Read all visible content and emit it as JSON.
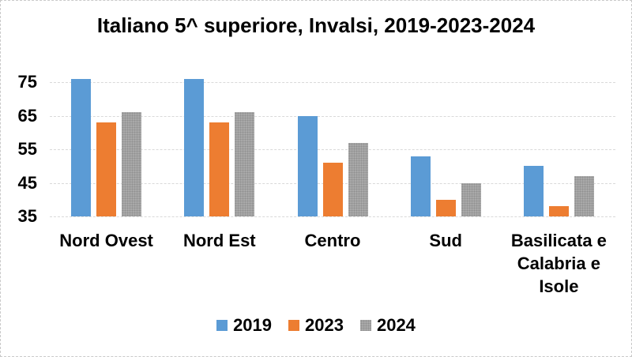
{
  "chart_data": {
    "type": "bar",
    "title": "Italiano 5^ superiore, Invalsi, 2019-2023-2024",
    "categories": [
      "Nord Ovest",
      "Nord Est",
      "Centro",
      "Sud",
      "Basilicata e Calabria e Isole"
    ],
    "series": [
      {
        "name": "2019",
        "color": "#5b9bd5",
        "fill_pattern": "solid",
        "values": [
          76,
          76,
          65,
          53,
          50
        ]
      },
      {
        "name": "2023",
        "color": "#ed7d31",
        "fill_pattern": "solid",
        "values": [
          63,
          63,
          51,
          40,
          38
        ]
      },
      {
        "name": "2024",
        "color": "#a9a9a9",
        "fill_pattern": "dots",
        "values": [
          66,
          66,
          57,
          45,
          47
        ]
      }
    ],
    "xlabel": "",
    "ylabel": "",
    "y_axis": {
      "ticks": [
        75,
        65,
        55,
        45,
        35
      ],
      "min": 35,
      "grid": true,
      "gridline_color": "#d9d9d9"
    },
    "legend_position": "bottom",
    "background_color": "#ffffff"
  }
}
